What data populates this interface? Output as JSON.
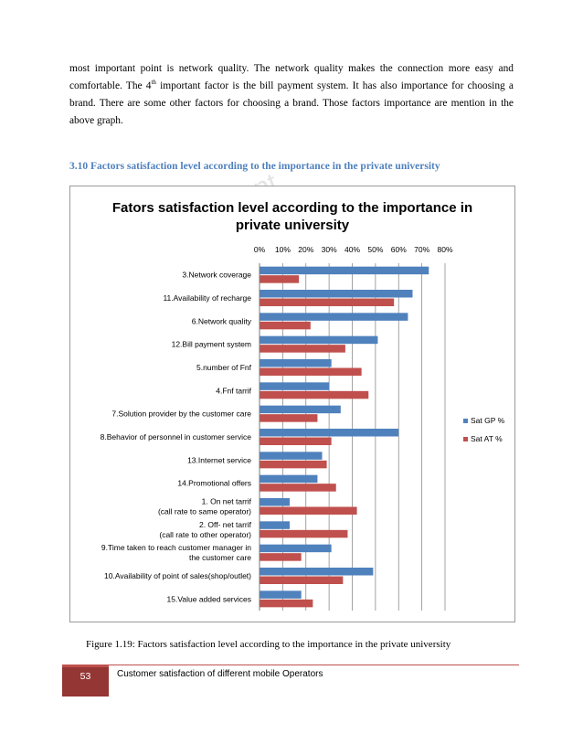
{
  "paragraph": {
    "part1": "most important point is network quality. The network quality makes the connection more easy and comfortable. The 4",
    "superscript": "th",
    "part2": " important factor is the bill payment system. It has also importance for choosing a brand. There are some other factors for choosing a brand. Those factors importance are mention in the above graph."
  },
  "section_heading": "3.10 Factors satisfaction level according to the importance in the private university",
  "watermark": "ont",
  "caption": "Figure 1.19: Factors satisfaction level according to the importance in the private university",
  "footer": {
    "page_number": "53",
    "title": "Customer satisfaction of different mobile Operators",
    "accent_color": "#943634"
  },
  "chart_data": {
    "type": "bar",
    "orientation": "horizontal",
    "title_line1": "Fators satisfaction  level according to the importance in",
    "title_line2": "private university",
    "x_ticks": [
      "0%",
      "10%",
      "20%",
      "30%",
      "40%",
      "50%",
      "60%",
      "70%",
      "80%"
    ],
    "xlim": [
      0,
      80
    ],
    "categories": [
      [
        "3.Network coverage"
      ],
      [
        "11.Availability of recharge"
      ],
      [
        "6.Network quality"
      ],
      [
        "12.Bill payment system"
      ],
      [
        "5.number of Fnf"
      ],
      [
        "4.Fnf tarrif"
      ],
      [
        "7.Solution provider by the customer care"
      ],
      [
        "8.Behavior of personnel in customer service"
      ],
      [
        "13.Internet service"
      ],
      [
        "14.Promotional offers"
      ],
      [
        "1. On net tarrif",
        "(call rate to same operator)"
      ],
      [
        "2. Off- net tarrif",
        "(call rate to other operator)"
      ],
      [
        "9.Time taken to reach customer manager in",
        "the customer care"
      ],
      [
        "10.Availability of point of sales(shop/outlet)"
      ],
      [
        "15.Value added services"
      ]
    ],
    "series": [
      {
        "name": "Sat GP %",
        "color": "#4f81bd",
        "values": [
          73,
          66,
          64,
          51,
          31,
          30,
          35,
          60,
          27,
          25,
          13,
          13,
          31,
          49,
          18
        ]
      },
      {
        "name": "Sat AT %",
        "color": "#c0504d",
        "values": [
          17,
          58,
          22,
          37,
          44,
          47,
          25,
          31,
          29,
          33,
          42,
          38,
          18,
          36,
          23
        ]
      }
    ],
    "legend_position": "right",
    "grid": true
  }
}
